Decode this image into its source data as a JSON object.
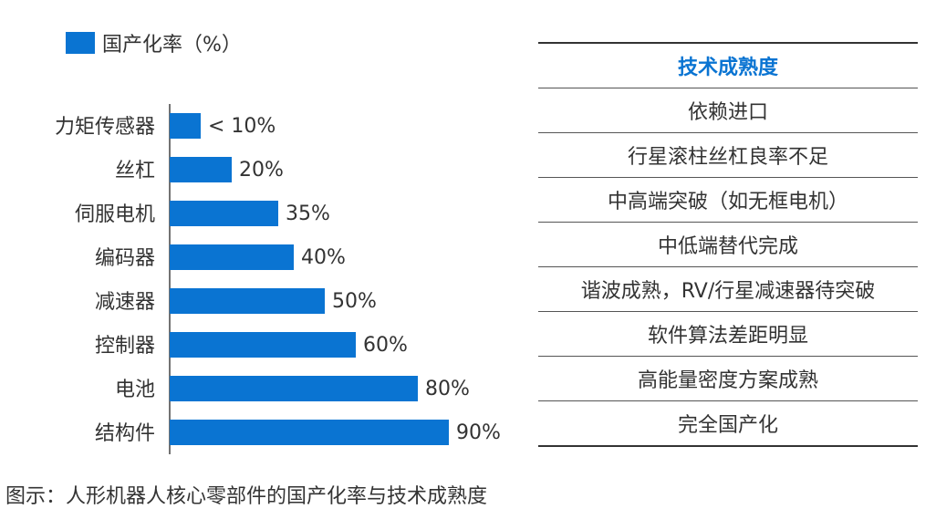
{
  "chart_data": {
    "type": "bar",
    "orientation": "horizontal",
    "legend": "国产化率（%）",
    "legend_color": "#0a74d2",
    "categories": [
      "力矩传感器",
      "丝杠",
      "伺服电机",
      "编码器",
      "减速器",
      "控制器",
      "电池",
      "结构件"
    ],
    "values": [
      10,
      20,
      35,
      40,
      50,
      60,
      80,
      90
    ],
    "data_labels": [
      "< 10%",
      "20%",
      "35%",
      "40%",
      "50%",
      "60%",
      "80%",
      "90%"
    ],
    "xlim": [
      0,
      100
    ]
  },
  "table": {
    "header": "技术成熟度",
    "rows": [
      "依赖进口",
      "行星滚柱丝杠良率不足",
      "中高端突破（如无框电机）",
      "中低端替代完成",
      "谐波成熟，RV/行星减速器待突破",
      "软件算法差距明显",
      "高能量密度方案成熟",
      "完全国产化"
    ]
  },
  "caption": "图示：人形机器人核心零部件的国产化率与技术成熟度",
  "colors": {
    "bar": "#0a74d2",
    "header": "#0a74d2",
    "text": "#333333"
  }
}
